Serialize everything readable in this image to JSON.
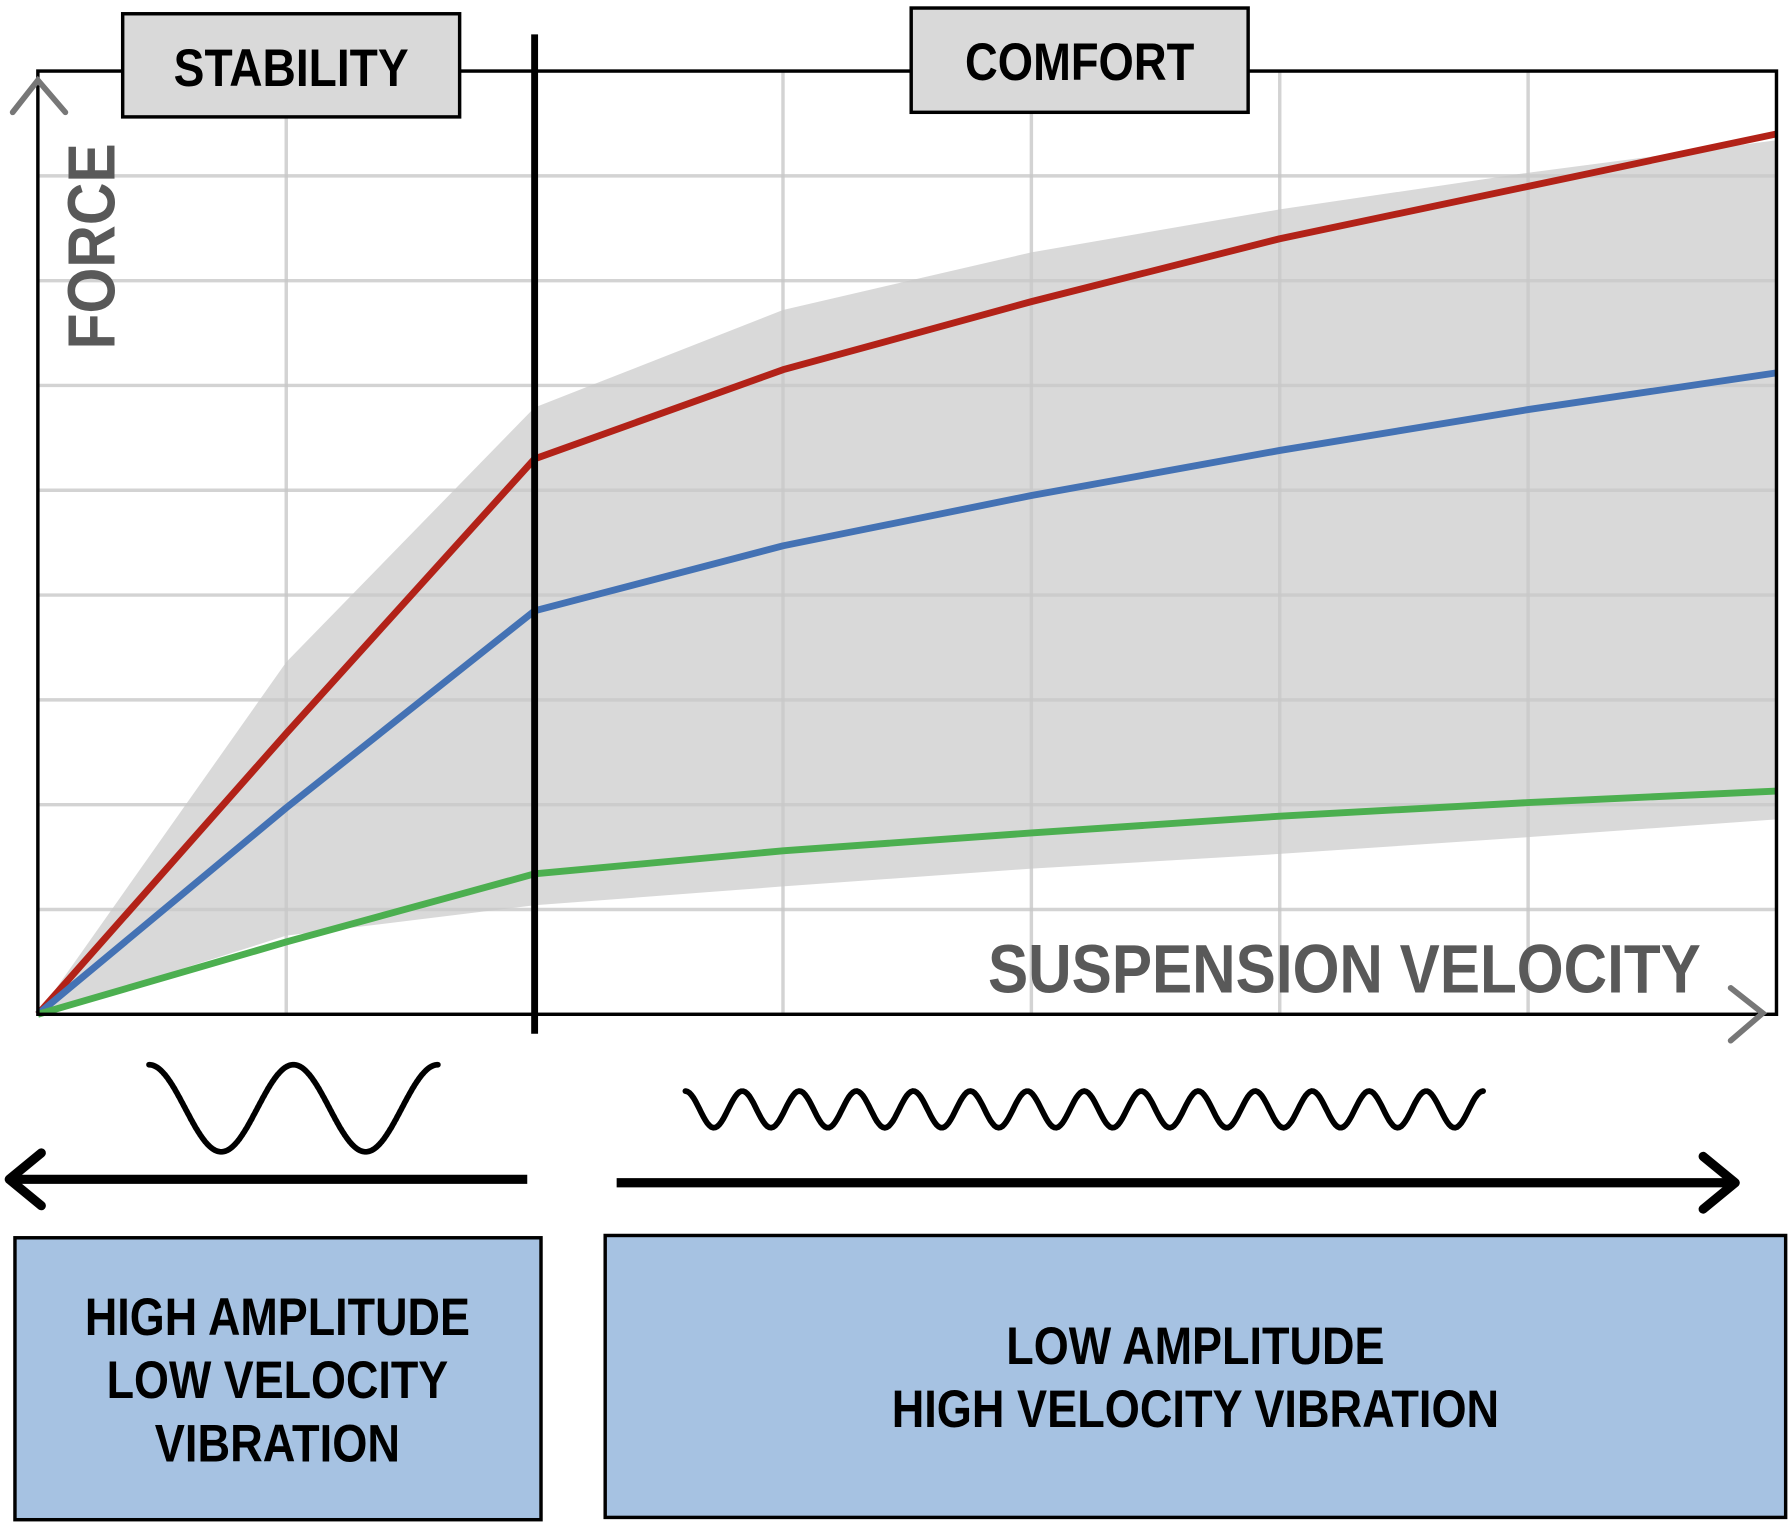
{
  "chart_data": {
    "type": "line",
    "xlabel": "SUSPENSION VELOCITY",
    "ylabel": "FORCE",
    "xlim": [
      0,
      7
    ],
    "ylim": [
      0,
      9
    ],
    "grid": true,
    "x": [
      0,
      1,
      2,
      3,
      4,
      5,
      6,
      7
    ],
    "series": [
      {
        "color": "#b22218",
        "values": [
          0,
          2.68,
          5.3,
          6.15,
          6.8,
          7.4,
          7.9,
          8.4
        ]
      },
      {
        "color": "#4472b4",
        "values": [
          0,
          1.97,
          3.85,
          4.47,
          4.95,
          5.38,
          5.77,
          6.12
        ]
      },
      {
        "color": "#4caf50",
        "values": [
          0,
          0.69,
          1.34,
          1.56,
          1.73,
          1.89,
          2.02,
          2.13
        ]
      }
    ],
    "band": {
      "color": "#d9d9d9",
      "upper": [
        0,
        3.36,
        5.79,
        6.72,
        7.27,
        7.68,
        8.03,
        8.34
      ],
      "lower": [
        0,
        0.75,
        1.04,
        1.22,
        1.39,
        1.53,
        1.69,
        1.86
      ]
    },
    "divider_x": 2,
    "regions": {
      "left": "STABILITY",
      "right": "COMFORT"
    }
  },
  "bottom": {
    "left_box": [
      "HIGH AMPLITUDE",
      "LOW VELOCITY",
      "VIBRATION"
    ],
    "right_box": [
      "LOW AMPLITUDE",
      "HIGH VELOCITY VIBRATION"
    ],
    "box_color": "#a6c2e2"
  }
}
